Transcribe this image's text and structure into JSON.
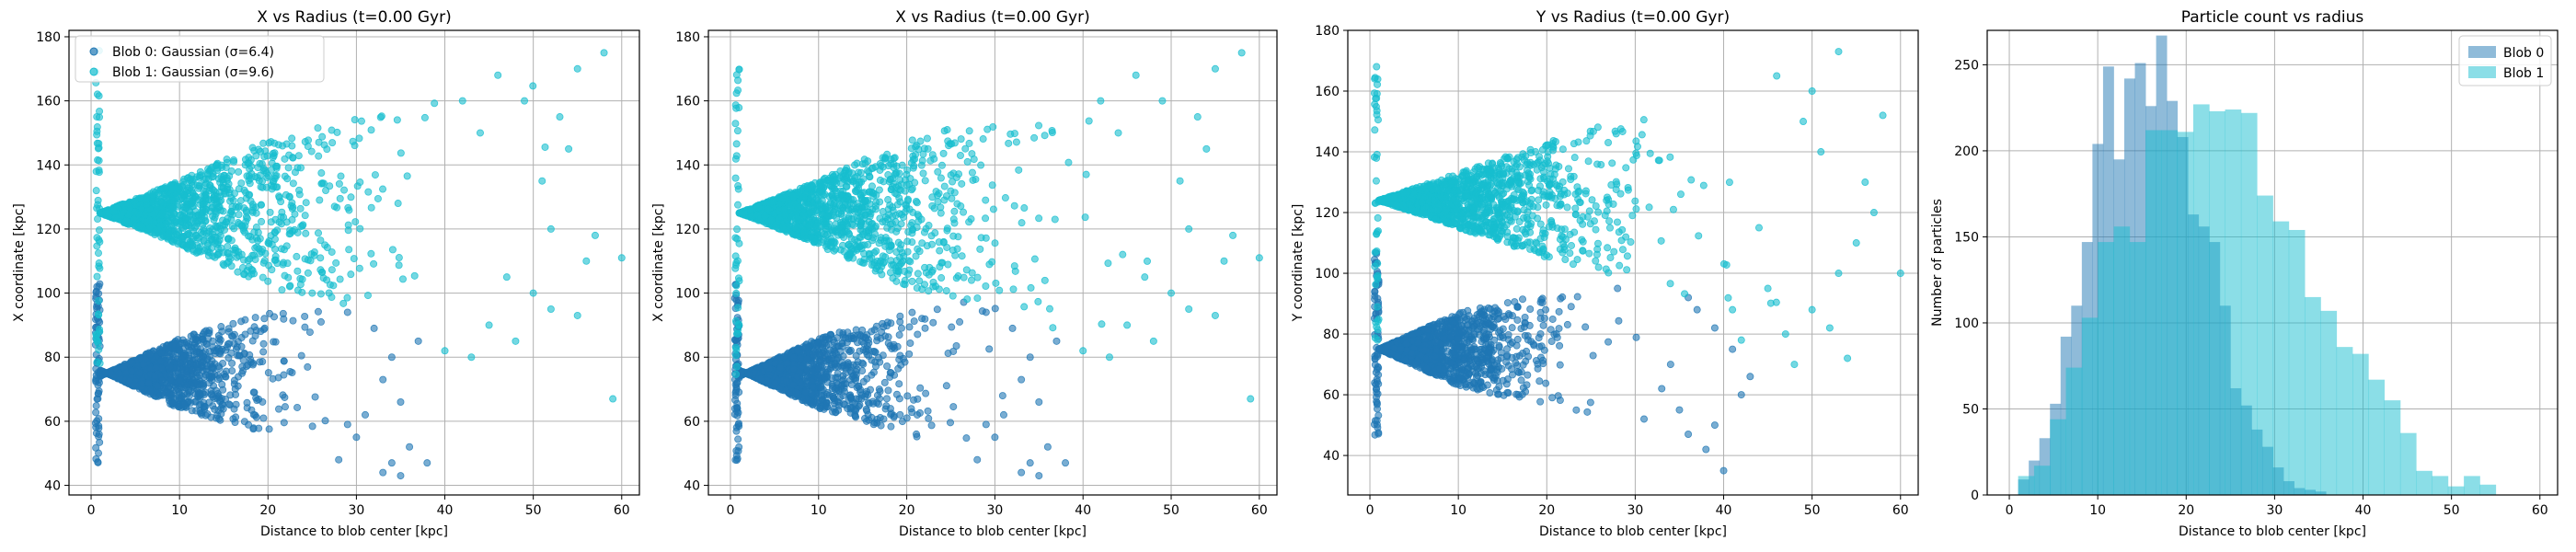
{
  "colors": {
    "blob0": "#1f77b4",
    "blob1": "#17becf",
    "grid": "#b0b0b0"
  },
  "chart_data": [
    {
      "type": "scatter",
      "title": "X vs Radius (t=0.00 Gyr)",
      "xlabel": "Distance to blob center [kpc]",
      "ylabel": "X coordinate [kpc]",
      "xlim": [
        -2.5,
        62
      ],
      "ylim": [
        37,
        182
      ],
      "xticks": [
        0,
        10,
        20,
        30,
        40,
        50,
        60
      ],
      "yticks": [
        40,
        60,
        80,
        100,
        120,
        140,
        160,
        180
      ],
      "grid": true,
      "legend": {
        "placement": "top-left",
        "entries": [
          "Blob 0: Gaussian (σ=6.4)",
          "Blob 1: Gaussian (σ=9.6)"
        ]
      },
      "series": [
        {
          "name": "Blob 0: Gaussian (σ=6.4)",
          "color_key": "blob0",
          "center": 75,
          "sigma": 6.4,
          "envelope": [
            [
              1,
              76
            ],
            [
              10,
              64
            ],
            [
              20,
              56
            ],
            [
              28,
              50
            ],
            [
              34,
              44
            ],
            [
              38,
              47
            ]
          ],
          "points": [
            [
              33,
              44
            ],
            [
              35,
              43
            ],
            [
              34,
              47
            ],
            [
              29,
              59
            ],
            [
              38,
              47
            ],
            [
              30,
              55
            ],
            [
              36,
              52
            ],
            [
              26,
              91
            ],
            [
              29,
              94
            ],
            [
              32,
              89
            ],
            [
              35,
              66
            ],
            [
              37,
              85
            ],
            [
              28,
              48
            ],
            [
              31,
              62
            ],
            [
              33,
              73
            ],
            [
              34,
              80
            ]
          ]
        },
        {
          "name": "Blob 1: Gaussian (σ=9.6)",
          "color_key": "blob1",
          "center": 125,
          "sigma": 9.6,
          "envelope": [
            [
              1,
              125
            ],
            [
              10,
              135
            ],
            [
              20,
              148
            ],
            [
              30,
              155
            ],
            [
              40,
              165
            ],
            [
              50,
              170
            ],
            [
              58,
              176
            ]
          ],
          "points": [
            [
              58,
              175
            ],
            [
              59,
              67
            ],
            [
              60,
              111
            ],
            [
              55,
              170
            ],
            [
              53,
              155
            ],
            [
              54,
              145
            ],
            [
              52,
              120
            ],
            [
              56,
              110
            ],
            [
              50,
              100
            ],
            [
              48,
              85
            ],
            [
              45,
              90
            ],
            [
              55,
              93
            ],
            [
              51,
              135
            ],
            [
              46,
              168
            ],
            [
              43,
              80
            ],
            [
              57,
              118
            ],
            [
              49,
              160
            ],
            [
              47,
              105
            ],
            [
              44,
              150
            ],
            [
              52,
              95
            ],
            [
              40,
              82
            ],
            [
              42,
              160
            ]
          ]
        }
      ]
    },
    {
      "type": "scatter",
      "title": "X vs Radius (t=0.00 Gyr)",
      "xlabel": "Distance to blob center [kpc]",
      "ylabel": "X coordinate [kpc]",
      "xlim": [
        -2.5,
        62
      ],
      "ylim": [
        37,
        182
      ],
      "xticks": [
        0,
        10,
        20,
        30,
        40,
        50,
        60
      ],
      "yticks": [
        40,
        60,
        80,
        100,
        120,
        140,
        160,
        180
      ],
      "grid": true,
      "series": [
        {
          "color_key": "blob0",
          "center": 75,
          "sigma": 6.4,
          "envelope": [
            [
              1,
              76
            ],
            [
              10,
              64
            ],
            [
              20,
              56
            ],
            [
              28,
              50
            ],
            [
              34,
              44
            ],
            [
              38,
              47
            ]
          ],
          "points": [
            [
              33,
              44
            ],
            [
              35,
              43
            ],
            [
              34,
              47
            ],
            [
              29,
              59
            ],
            [
              38,
              47
            ],
            [
              30,
              55
            ],
            [
              36,
              52
            ],
            [
              26,
              91
            ],
            [
              29,
              94
            ],
            [
              32,
              89
            ],
            [
              35,
              66
            ],
            [
              37,
              85
            ],
            [
              28,
              48
            ],
            [
              31,
              62
            ],
            [
              33,
              73
            ],
            [
              34,
              80
            ]
          ]
        },
        {
          "color_key": "blob1",
          "center": 125,
          "sigma": 9.6,
          "envelope": [
            [
              1,
              125
            ],
            [
              10,
              135
            ],
            [
              20,
              148
            ],
            [
              30,
              155
            ],
            [
              40,
              165
            ],
            [
              50,
              170
            ],
            [
              58,
              176
            ]
          ],
          "points": [
            [
              58,
              175
            ],
            [
              59,
              67
            ],
            [
              60,
              111
            ],
            [
              55,
              170
            ],
            [
              53,
              155
            ],
            [
              54,
              145
            ],
            [
              52,
              120
            ],
            [
              56,
              110
            ],
            [
              50,
              100
            ],
            [
              48,
              85
            ],
            [
              45,
              90
            ],
            [
              55,
              93
            ],
            [
              51,
              135
            ],
            [
              46,
              168
            ],
            [
              43,
              80
            ],
            [
              57,
              118
            ],
            [
              49,
              160
            ],
            [
              47,
              105
            ],
            [
              44,
              150
            ],
            [
              52,
              95
            ],
            [
              40,
              82
            ],
            [
              42,
              160
            ]
          ]
        }
      ]
    },
    {
      "type": "scatter",
      "title": "Y vs Radius (t=0.00 Gyr)",
      "xlabel": "Distance to blob center [kpc]",
      "ylabel": "Y coordinate [kpc]",
      "xlim": [
        -2.5,
        62
      ],
      "ylim": [
        27,
        180
      ],
      "xticks": [
        0,
        10,
        20,
        30,
        40,
        50,
        60
      ],
      "yticks": [
        40,
        60,
        80,
        100,
        120,
        140,
        160,
        180
      ],
      "grid": true,
      "series": [
        {
          "color_key": "blob0",
          "center": 75,
          "sigma": 6.4,
          "envelope": [
            [
              1,
              75
            ],
            [
              10,
              63
            ],
            [
              20,
              56
            ],
            [
              30,
              49
            ],
            [
              36,
              44
            ],
            [
              38,
              42
            ]
          ],
          "points": [
            [
              40,
              35
            ],
            [
              38,
              42
            ],
            [
              36,
              47
            ],
            [
              39,
              50
            ],
            [
              42,
              60
            ],
            [
              43,
              66
            ],
            [
              35,
              55
            ],
            [
              33,
              62
            ],
            [
              37,
              88
            ],
            [
              28,
              95
            ],
            [
              41,
              75
            ],
            [
              34,
              70
            ],
            [
              31,
              52
            ],
            [
              39,
              82
            ],
            [
              36,
              92
            ]
          ]
        },
        {
          "color_key": "blob1",
          "center": 124,
          "sigma": 9.6,
          "envelope": [
            [
              1,
              124
            ],
            [
              10,
              133
            ],
            [
              20,
              143
            ],
            [
              30,
              152
            ],
            [
              40,
              158
            ],
            [
              50,
              166
            ],
            [
              53,
              173
            ]
          ],
          "points": [
            [
              53,
              173
            ],
            [
              60,
              100
            ],
            [
              58,
              152
            ],
            [
              57,
              120
            ],
            [
              55,
              110
            ],
            [
              52,
              82
            ],
            [
              54,
              72
            ],
            [
              50,
              88
            ],
            [
              48,
              70
            ],
            [
              45,
              95
            ],
            [
              51,
              140
            ],
            [
              56,
              130
            ],
            [
              46,
              165
            ],
            [
              44,
              115
            ],
            [
              49,
              150
            ],
            [
              47,
              80
            ],
            [
              53,
              100
            ],
            [
              42,
              78
            ],
            [
              50,
              160
            ],
            [
              41,
              88
            ]
          ]
        }
      ]
    },
    {
      "type": "bar",
      "title": "Particle count vs radius",
      "xlabel": "Distance to blob center [kpc]",
      "ylabel": "Number of particles",
      "xlim": [
        -2.5,
        62
      ],
      "ylim": [
        0,
        270
      ],
      "xticks": [
        0,
        10,
        20,
        30,
        40,
        50,
        60
      ],
      "yticks": [
        0,
        50,
        100,
        150,
        200,
        250
      ],
      "grid": true,
      "legend": {
        "placement": "top-right",
        "entries": [
          "Blob 0",
          "Blob 1"
        ]
      },
      "series": [
        {
          "name": "Blob 0",
          "color_key": "blob0",
          "bin_start": 1.0,
          "bin_width": 1.2,
          "values": [
            9,
            20,
            33,
            53,
            92,
            110,
            147,
            204,
            249,
            195,
            242,
            251,
            226,
            267,
            229,
            208,
            163,
            156,
            147,
            110,
            62,
            52,
            38,
            28,
            16,
            8,
            4,
            3,
            2
          ]
        },
        {
          "name": "Blob 1",
          "color_key": "blob1",
          "bin_start": 1.0,
          "bin_width": 1.8,
          "values": [
            11,
            17,
            44,
            74,
            103,
            147,
            156,
            147,
            212,
            212,
            211,
            227,
            223,
            224,
            222,
            174,
            159,
            154,
            115,
            107,
            86,
            82,
            67,
            55,
            36,
            14,
            11,
            5,
            11,
            6
          ]
        }
      ]
    }
  ]
}
